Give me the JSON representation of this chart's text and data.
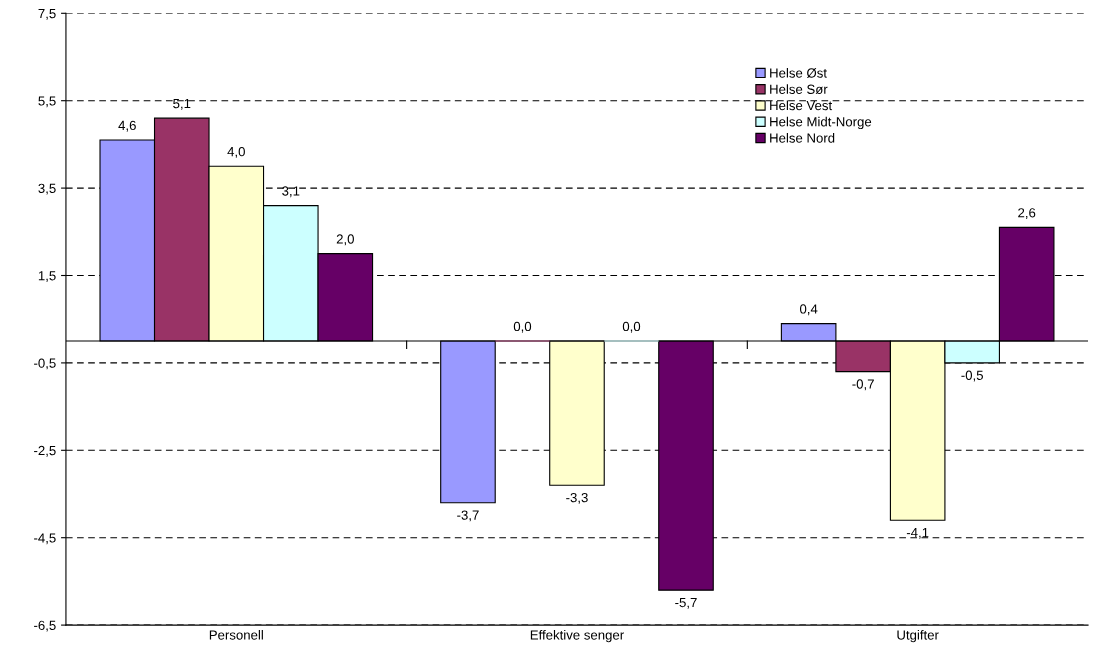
{
  "chart_data": {
    "type": "bar",
    "categories": [
      "Personell",
      "Effektive senger",
      "Utgifter"
    ],
    "series": [
      {
        "name": "Helse Øst",
        "color": "#9999ff",
        "values": [
          4.6,
          -3.7,
          0.4
        ],
        "value_labels": [
          "4,6",
          "-3,7",
          "0,4"
        ]
      },
      {
        "name": "Helse Sør",
        "color": "#993366",
        "values": [
          5.1,
          0.0,
          -0.7
        ],
        "value_labels": [
          "5,1",
          "0,0",
          "-0,7"
        ]
      },
      {
        "name": "Helse Vest",
        "color": "#ffffcc",
        "values": [
          4.0,
          -3.3,
          -4.1
        ],
        "value_labels": [
          "4,0",
          "-3,3",
          "-4,1"
        ]
      },
      {
        "name": "Helse Midt-Norge",
        "color": "#ccffff",
        "values": [
          3.1,
          0.0,
          -0.5
        ],
        "value_labels": [
          "3,1",
          "0,0",
          "-0,5"
        ]
      },
      {
        "name": "Helse Nord",
        "color": "#660066",
        "values": [
          2.0,
          -5.7,
          2.6
        ],
        "value_labels": [
          "2,0",
          "-5,7",
          "2,6"
        ]
      }
    ],
    "ylim": [
      -6.5,
      7.5
    ],
    "yticks": [
      {
        "value": -6.5,
        "label": "-6,5"
      },
      {
        "value": -4.5,
        "label": "-4,5"
      },
      {
        "value": -2.5,
        "label": "-2,5"
      },
      {
        "value": -0.5,
        "label": "-0,5"
      },
      {
        "value": 1.5,
        "label": "1,5"
      },
      {
        "value": 3.5,
        "label": "3,5"
      },
      {
        "value": 5.5,
        "label": "5,5"
      },
      {
        "value": 7.5,
        "label": "7,5"
      }
    ],
    "ref_lines": [
      {
        "axis": "y",
        "value": 0,
        "color": "#000000",
        "line_style": "solid"
      }
    ],
    "grid": "y",
    "legend": "top right"
  }
}
